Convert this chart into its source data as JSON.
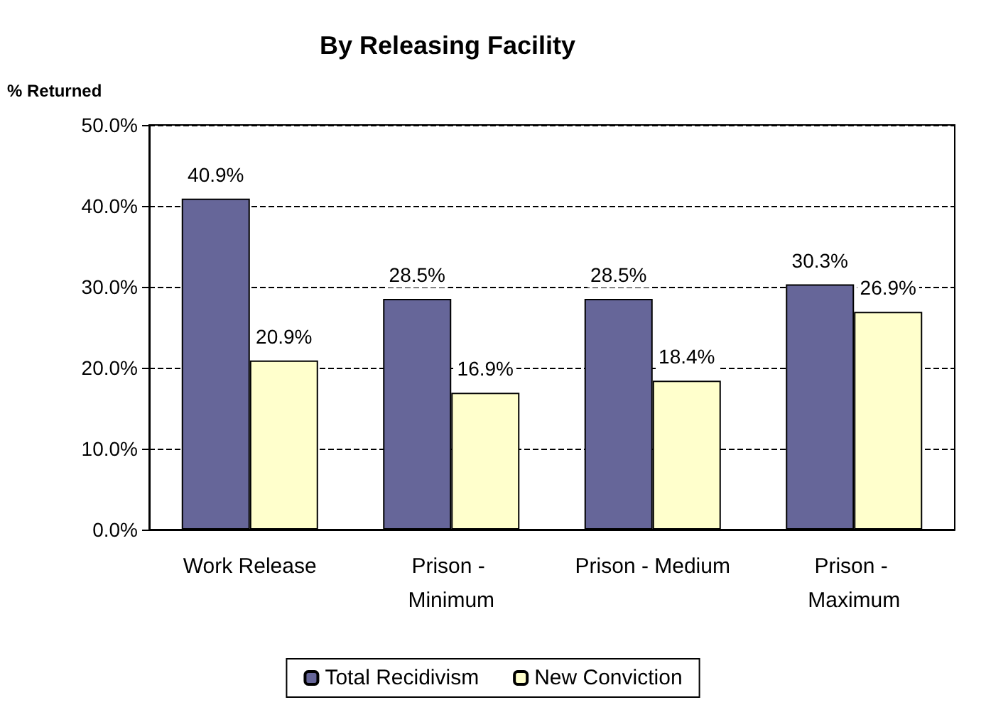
{
  "chart_data": {
    "type": "bar",
    "title": "By Releasing Facility",
    "ylabel": "% Returned",
    "categories": [
      "Work Release",
      "Prison - Minimum",
      "Prison - Medium",
      "Prison - Maximum"
    ],
    "series": [
      {
        "name": "Total Recidivism",
        "color": "#666699",
        "values": [
          40.9,
          28.5,
          28.5,
          30.3
        ],
        "value_labels": [
          "40.9%",
          "28.5%",
          "28.5%",
          "30.3%"
        ]
      },
      {
        "name": "New Conviction",
        "color": "#ffffcc",
        "values": [
          20.9,
          16.9,
          18.4,
          26.9
        ],
        "value_labels": [
          "20.9%",
          "16.9%",
          "18.4%",
          "26.9%"
        ]
      }
    ],
    "ylim": [
      0,
      50
    ],
    "yticks": [
      {
        "value": 0,
        "label": "0.0%"
      },
      {
        "value": 10,
        "label": "10.0%"
      },
      {
        "value": 20,
        "label": "20.0%"
      },
      {
        "value": 30,
        "label": "30.0%"
      },
      {
        "value": 40,
        "label": "40.0%"
      },
      {
        "value": 50,
        "label": "50.0%"
      }
    ],
    "grid": "y",
    "legend": "bottom"
  }
}
